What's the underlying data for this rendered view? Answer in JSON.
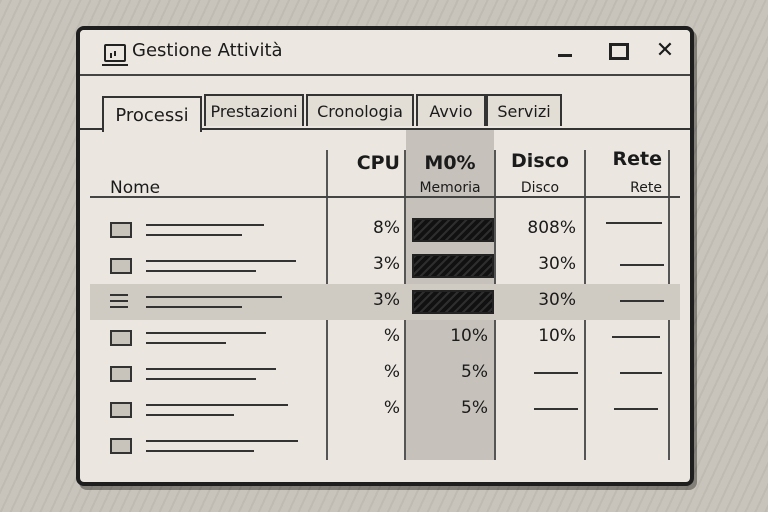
{
  "window": {
    "title": "Gestione Attività",
    "buttons": {
      "minimize": "minimize",
      "maximize": "maximize",
      "close": "✕"
    }
  },
  "tabs": [
    {
      "label": "Processi",
      "active": true
    },
    {
      "label": "Prestazioni",
      "active": false
    },
    {
      "label": "Cronologia",
      "active": false
    },
    {
      "label": "Avvio",
      "active": false
    },
    {
      "label": "Servizi",
      "active": false
    }
  ],
  "columns": {
    "name": "Nome",
    "cpu": "CPU",
    "memory": {
      "top": "M0%",
      "bottom": "Memoria"
    },
    "disk": {
      "top": "Disco",
      "bottom": "Disco"
    },
    "network": {
      "top": "Rete",
      "bottom": "Rete"
    }
  },
  "rows": [
    {
      "icon": "window-icon",
      "cpu": "8%",
      "memory": "",
      "memory_bar": true,
      "disk": "808%",
      "network": "—",
      "selected": false
    },
    {
      "icon": "window-icon",
      "cpu": "3%",
      "memory": "",
      "memory_bar": true,
      "disk": "30%",
      "network": "—",
      "selected": false
    },
    {
      "icon": "list-icon",
      "cpu": "3%",
      "memory": "",
      "memory_bar": true,
      "disk": "30%",
      "network": "—",
      "selected": true
    },
    {
      "icon": "window-icon",
      "cpu": "%",
      "memory": "10%",
      "memory_bar": false,
      "disk": "10%",
      "network": "—",
      "selected": false
    },
    {
      "icon": "window-icon",
      "cpu": "%",
      "memory": "5%",
      "memory_bar": false,
      "disk": "—",
      "network": "—",
      "selected": false
    },
    {
      "icon": "window-icon",
      "cpu": "%",
      "memory": "5%",
      "memory_bar": false,
      "disk": "—",
      "network": "—",
      "selected": false
    },
    {
      "icon": "window-icon",
      "cpu": "",
      "memory": "",
      "memory_bar": false,
      "disk": "",
      "network": "",
      "selected": false
    }
  ],
  "colors": {
    "selected_row": "#cfcac2",
    "memory_bar": "#111111",
    "highlight_column": "#c6c2bb"
  }
}
